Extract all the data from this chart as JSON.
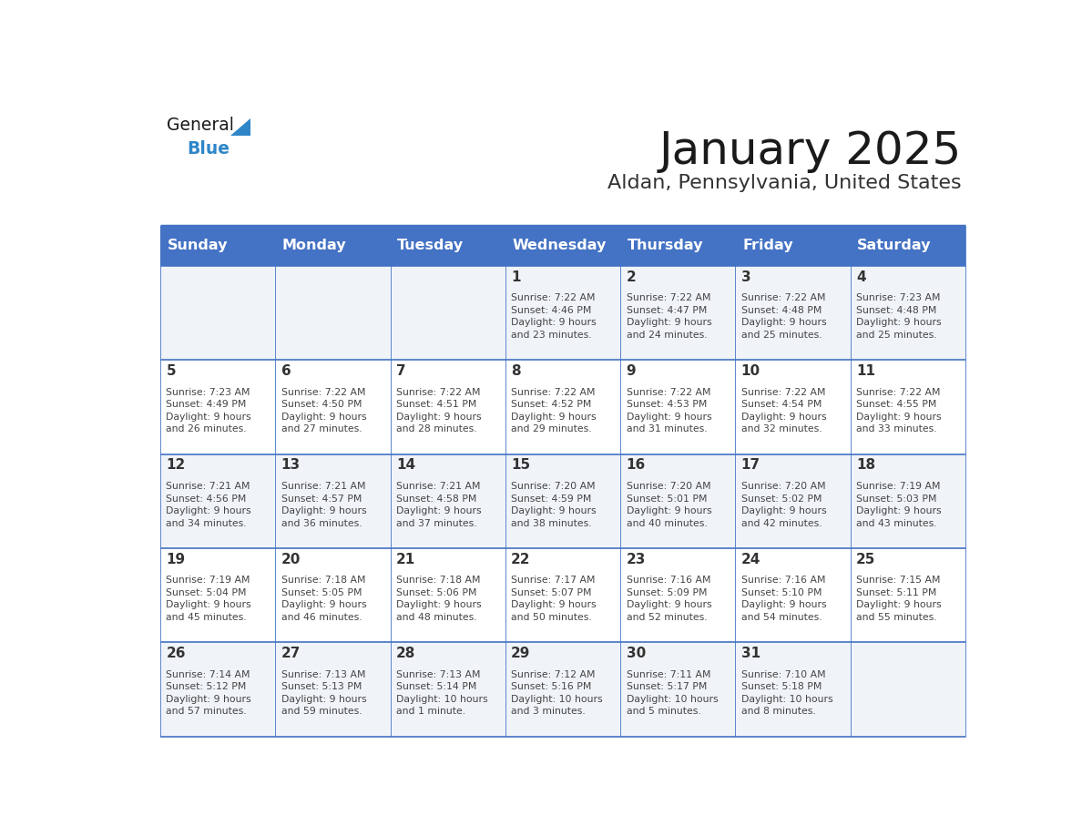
{
  "title": "January 2025",
  "subtitle": "Aldan, Pennsylvania, United States",
  "days_of_week": [
    "Sunday",
    "Monday",
    "Tuesday",
    "Wednesday",
    "Thursday",
    "Friday",
    "Saturday"
  ],
  "header_bg": "#4472C4",
  "header_text_color": "#FFFFFF",
  "cell_bg_light": "#FFFFFF",
  "cell_bg_dark": "#F0F4F8",
  "border_color": "#4472C4",
  "day_number_color": "#333333",
  "text_color": "#444444",
  "title_color": "#1a1a1a",
  "subtitle_color": "#333333",
  "logo_text_color": "#1a1a1a",
  "logo_blue_color": "#2e86c8",
  "calendar": [
    [
      {
        "day": null,
        "info": ""
      },
      {
        "day": null,
        "info": ""
      },
      {
        "day": null,
        "info": ""
      },
      {
        "day": 1,
        "info": "Sunrise: 7:22 AM\nSunset: 4:46 PM\nDaylight: 9 hours\nand 23 minutes."
      },
      {
        "day": 2,
        "info": "Sunrise: 7:22 AM\nSunset: 4:47 PM\nDaylight: 9 hours\nand 24 minutes."
      },
      {
        "day": 3,
        "info": "Sunrise: 7:22 AM\nSunset: 4:48 PM\nDaylight: 9 hours\nand 25 minutes."
      },
      {
        "day": 4,
        "info": "Sunrise: 7:23 AM\nSunset: 4:48 PM\nDaylight: 9 hours\nand 25 minutes."
      }
    ],
    [
      {
        "day": 5,
        "info": "Sunrise: 7:23 AM\nSunset: 4:49 PM\nDaylight: 9 hours\nand 26 minutes."
      },
      {
        "day": 6,
        "info": "Sunrise: 7:22 AM\nSunset: 4:50 PM\nDaylight: 9 hours\nand 27 minutes."
      },
      {
        "day": 7,
        "info": "Sunrise: 7:22 AM\nSunset: 4:51 PM\nDaylight: 9 hours\nand 28 minutes."
      },
      {
        "day": 8,
        "info": "Sunrise: 7:22 AM\nSunset: 4:52 PM\nDaylight: 9 hours\nand 29 minutes."
      },
      {
        "day": 9,
        "info": "Sunrise: 7:22 AM\nSunset: 4:53 PM\nDaylight: 9 hours\nand 31 minutes."
      },
      {
        "day": 10,
        "info": "Sunrise: 7:22 AM\nSunset: 4:54 PM\nDaylight: 9 hours\nand 32 minutes."
      },
      {
        "day": 11,
        "info": "Sunrise: 7:22 AM\nSunset: 4:55 PM\nDaylight: 9 hours\nand 33 minutes."
      }
    ],
    [
      {
        "day": 12,
        "info": "Sunrise: 7:21 AM\nSunset: 4:56 PM\nDaylight: 9 hours\nand 34 minutes."
      },
      {
        "day": 13,
        "info": "Sunrise: 7:21 AM\nSunset: 4:57 PM\nDaylight: 9 hours\nand 36 minutes."
      },
      {
        "day": 14,
        "info": "Sunrise: 7:21 AM\nSunset: 4:58 PM\nDaylight: 9 hours\nand 37 minutes."
      },
      {
        "day": 15,
        "info": "Sunrise: 7:20 AM\nSunset: 4:59 PM\nDaylight: 9 hours\nand 38 minutes."
      },
      {
        "day": 16,
        "info": "Sunrise: 7:20 AM\nSunset: 5:01 PM\nDaylight: 9 hours\nand 40 minutes."
      },
      {
        "day": 17,
        "info": "Sunrise: 7:20 AM\nSunset: 5:02 PM\nDaylight: 9 hours\nand 42 minutes."
      },
      {
        "day": 18,
        "info": "Sunrise: 7:19 AM\nSunset: 5:03 PM\nDaylight: 9 hours\nand 43 minutes."
      }
    ],
    [
      {
        "day": 19,
        "info": "Sunrise: 7:19 AM\nSunset: 5:04 PM\nDaylight: 9 hours\nand 45 minutes."
      },
      {
        "day": 20,
        "info": "Sunrise: 7:18 AM\nSunset: 5:05 PM\nDaylight: 9 hours\nand 46 minutes."
      },
      {
        "day": 21,
        "info": "Sunrise: 7:18 AM\nSunset: 5:06 PM\nDaylight: 9 hours\nand 48 minutes."
      },
      {
        "day": 22,
        "info": "Sunrise: 7:17 AM\nSunset: 5:07 PM\nDaylight: 9 hours\nand 50 minutes."
      },
      {
        "day": 23,
        "info": "Sunrise: 7:16 AM\nSunset: 5:09 PM\nDaylight: 9 hours\nand 52 minutes."
      },
      {
        "day": 24,
        "info": "Sunrise: 7:16 AM\nSunset: 5:10 PM\nDaylight: 9 hours\nand 54 minutes."
      },
      {
        "day": 25,
        "info": "Sunrise: 7:15 AM\nSunset: 5:11 PM\nDaylight: 9 hours\nand 55 minutes."
      }
    ],
    [
      {
        "day": 26,
        "info": "Sunrise: 7:14 AM\nSunset: 5:12 PM\nDaylight: 9 hours\nand 57 minutes."
      },
      {
        "day": 27,
        "info": "Sunrise: 7:13 AM\nSunset: 5:13 PM\nDaylight: 9 hours\nand 59 minutes."
      },
      {
        "day": 28,
        "info": "Sunrise: 7:13 AM\nSunset: 5:14 PM\nDaylight: 10 hours\nand 1 minute."
      },
      {
        "day": 29,
        "info": "Sunrise: 7:12 AM\nSunset: 5:16 PM\nDaylight: 10 hours\nand 3 minutes."
      },
      {
        "day": 30,
        "info": "Sunrise: 7:11 AM\nSunset: 5:17 PM\nDaylight: 10 hours\nand 5 minutes."
      },
      {
        "day": 31,
        "info": "Sunrise: 7:10 AM\nSunset: 5:18 PM\nDaylight: 10 hours\nand 8 minutes."
      },
      {
        "day": null,
        "info": ""
      }
    ]
  ]
}
